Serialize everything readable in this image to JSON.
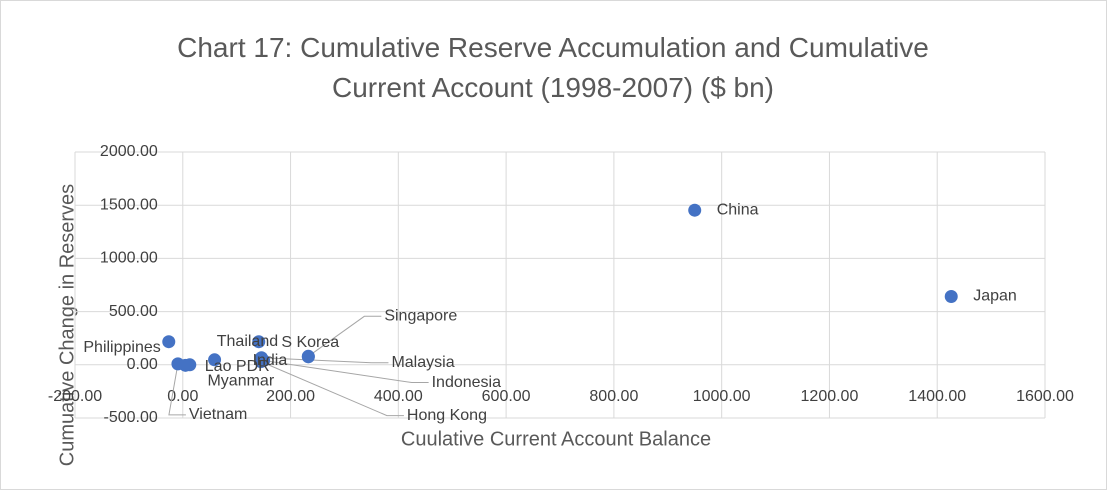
{
  "chart_data": {
    "type": "scatter",
    "title": "Chart 17: Cumulative Reserve Accumulation and Cumulative Current Account (1998-2007) ($ bn)",
    "x_label": "Cuulative Current Account Balance",
    "y_label": "Cumuative Change in Reserves",
    "color": "#4472c4",
    "grid": true,
    "labels": [
      "China",
      "Japan",
      "Philippines",
      "India",
      "Thailand",
      "S Korea",
      "Singapore",
      "Malaysia",
      "Indonesia",
      "Lao PDR",
      "Myanmar",
      "Vietnam",
      "Hong Kong"
    ],
    "x": [
      950,
      1426,
      -26,
      59,
      141,
      233,
      233,
      146,
      150,
      13,
      5,
      -9,
      145
    ],
    "y": [
      1453,
      642,
      217,
      47,
      217,
      75,
      80,
      66,
      40,
      0,
      -5,
      9,
      30
    ],
    "xlim": [
      -200,
      1600
    ],
    "ylim": [
      -500,
      2000
    ],
    "xticks": [
      {
        "value": -200,
        "label": "-200.00"
      },
      {
        "value": 0,
        "label": "0.00"
      },
      {
        "value": 200,
        "label": "200.00"
      },
      {
        "value": 400,
        "label": "400.00"
      },
      {
        "value": 600,
        "label": "600.00"
      },
      {
        "value": 800,
        "label": "800.00"
      },
      {
        "value": 1000,
        "label": "1000.00"
      },
      {
        "value": 1200,
        "label": "1200.00"
      },
      {
        "value": 1400,
        "label": "1400.00"
      },
      {
        "value": 1600,
        "label": "1600.00"
      }
    ],
    "yticks": [
      {
        "value": -500,
        "label": "-500.00"
      },
      {
        "value": 0,
        "label": "0.00"
      },
      {
        "value": 500,
        "label": "500.00"
      },
      {
        "value": 1000,
        "label": "1000.00"
      },
      {
        "value": 1500,
        "label": "1500.00"
      },
      {
        "value": 2000,
        "label": "2000.00"
      }
    ]
  }
}
